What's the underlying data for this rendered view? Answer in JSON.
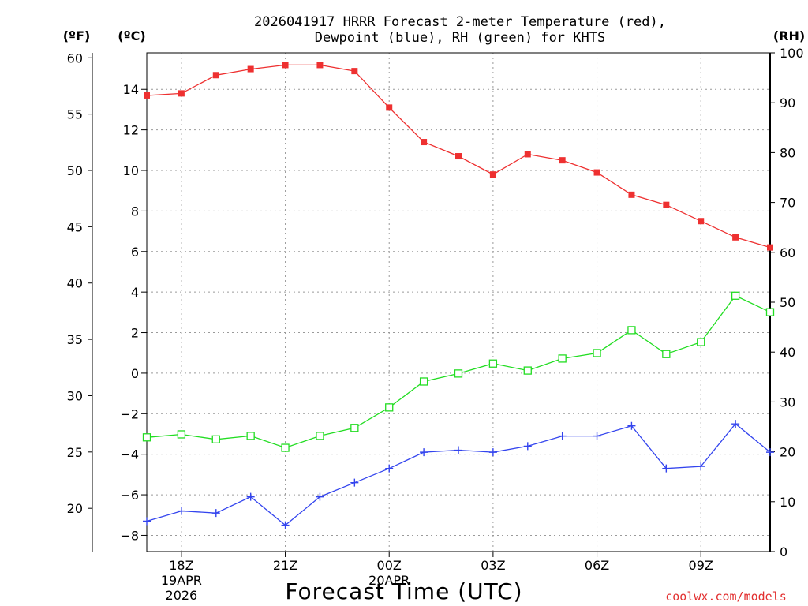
{
  "chart_data": {
    "type": "line",
    "title_line1": "2026041917 HRRR Forecast 2-meter Temperature (red),",
    "title_line2": "Dewpoint (blue), RH (green) for KHTS",
    "xlabel": "Forecast Time (UTC)",
    "credit": "coolwx.com/models",
    "units": {
      "fahrenheit": "(ºF)",
      "celsius": "(ºC)",
      "rh": "(RH)"
    },
    "x": [
      0,
      1,
      2,
      3,
      4,
      5,
      6,
      7,
      8,
      9,
      10,
      11,
      12,
      13,
      14,
      15,
      16,
      17,
      18
    ],
    "x_range": [
      0,
      18
    ],
    "x_ticks": [
      {
        "x": 1,
        "label": "18Z",
        "sub1": "19APR",
        "sub2": "2026"
      },
      {
        "x": 4,
        "label": "21Z",
        "sub1": "",
        "sub2": ""
      },
      {
        "x": 7,
        "label": "00Z",
        "sub1": "20APR",
        "sub2": ""
      },
      {
        "x": 10,
        "label": "03Z",
        "sub1": "",
        "sub2": ""
      },
      {
        "x": 13,
        "label": "06Z",
        "sub1": "",
        "sub2": ""
      },
      {
        "x": 16,
        "label": "09Z",
        "sub1": "",
        "sub2": ""
      }
    ],
    "y_celsius": {
      "range": [
        -8.8,
        15.8
      ],
      "ticks": [
        14,
        12,
        10,
        8,
        6,
        4,
        2,
        0,
        -2,
        -4,
        -6,
        -8
      ]
    },
    "y_fahrenheit": {
      "ticks": [
        60,
        55,
        50,
        45,
        40,
        35,
        30,
        25,
        20
      ]
    },
    "y_rh": {
      "range": [
        0,
        100
      ],
      "ticks": [
        100,
        90,
        80,
        70,
        60,
        50,
        40,
        30,
        20,
        10,
        0
      ]
    },
    "grid": true,
    "series": [
      {
        "name": "2-meter Temperature",
        "color": "#ee3030",
        "marker": "filled-square",
        "axis": "celsius",
        "values": [
          13.7,
          13.8,
          14.7,
          15.0,
          15.2,
          15.2,
          14.9,
          13.1,
          11.4,
          10.7,
          9.8,
          10.8,
          10.5,
          9.9,
          8.8,
          8.3,
          7.5,
          6.7,
          6.2
        ]
      },
      {
        "name": "Dewpoint",
        "color": "#3344ee",
        "marker": "plus",
        "axis": "celsius",
        "values": [
          -7.3,
          -6.8,
          -6.9,
          -6.1,
          -7.5,
          -6.1,
          -5.4,
          -4.7,
          -3.9,
          -3.8,
          -3.9,
          -3.6,
          -3.1,
          -3.1,
          -2.6,
          -4.7,
          -4.6,
          -2.5,
          -3.9
        ]
      },
      {
        "name": "RH",
        "color": "#22dd22",
        "marker": "open-square",
        "axis": "rh",
        "values": [
          22.9,
          23.5,
          22.5,
          23.2,
          20.8,
          23.2,
          24.8,
          28.9,
          34.1,
          35.7,
          37.7,
          36.3,
          38.7,
          39.8,
          44.4,
          39.6,
          42.0,
          51.3,
          48.0
        ]
      }
    ]
  }
}
